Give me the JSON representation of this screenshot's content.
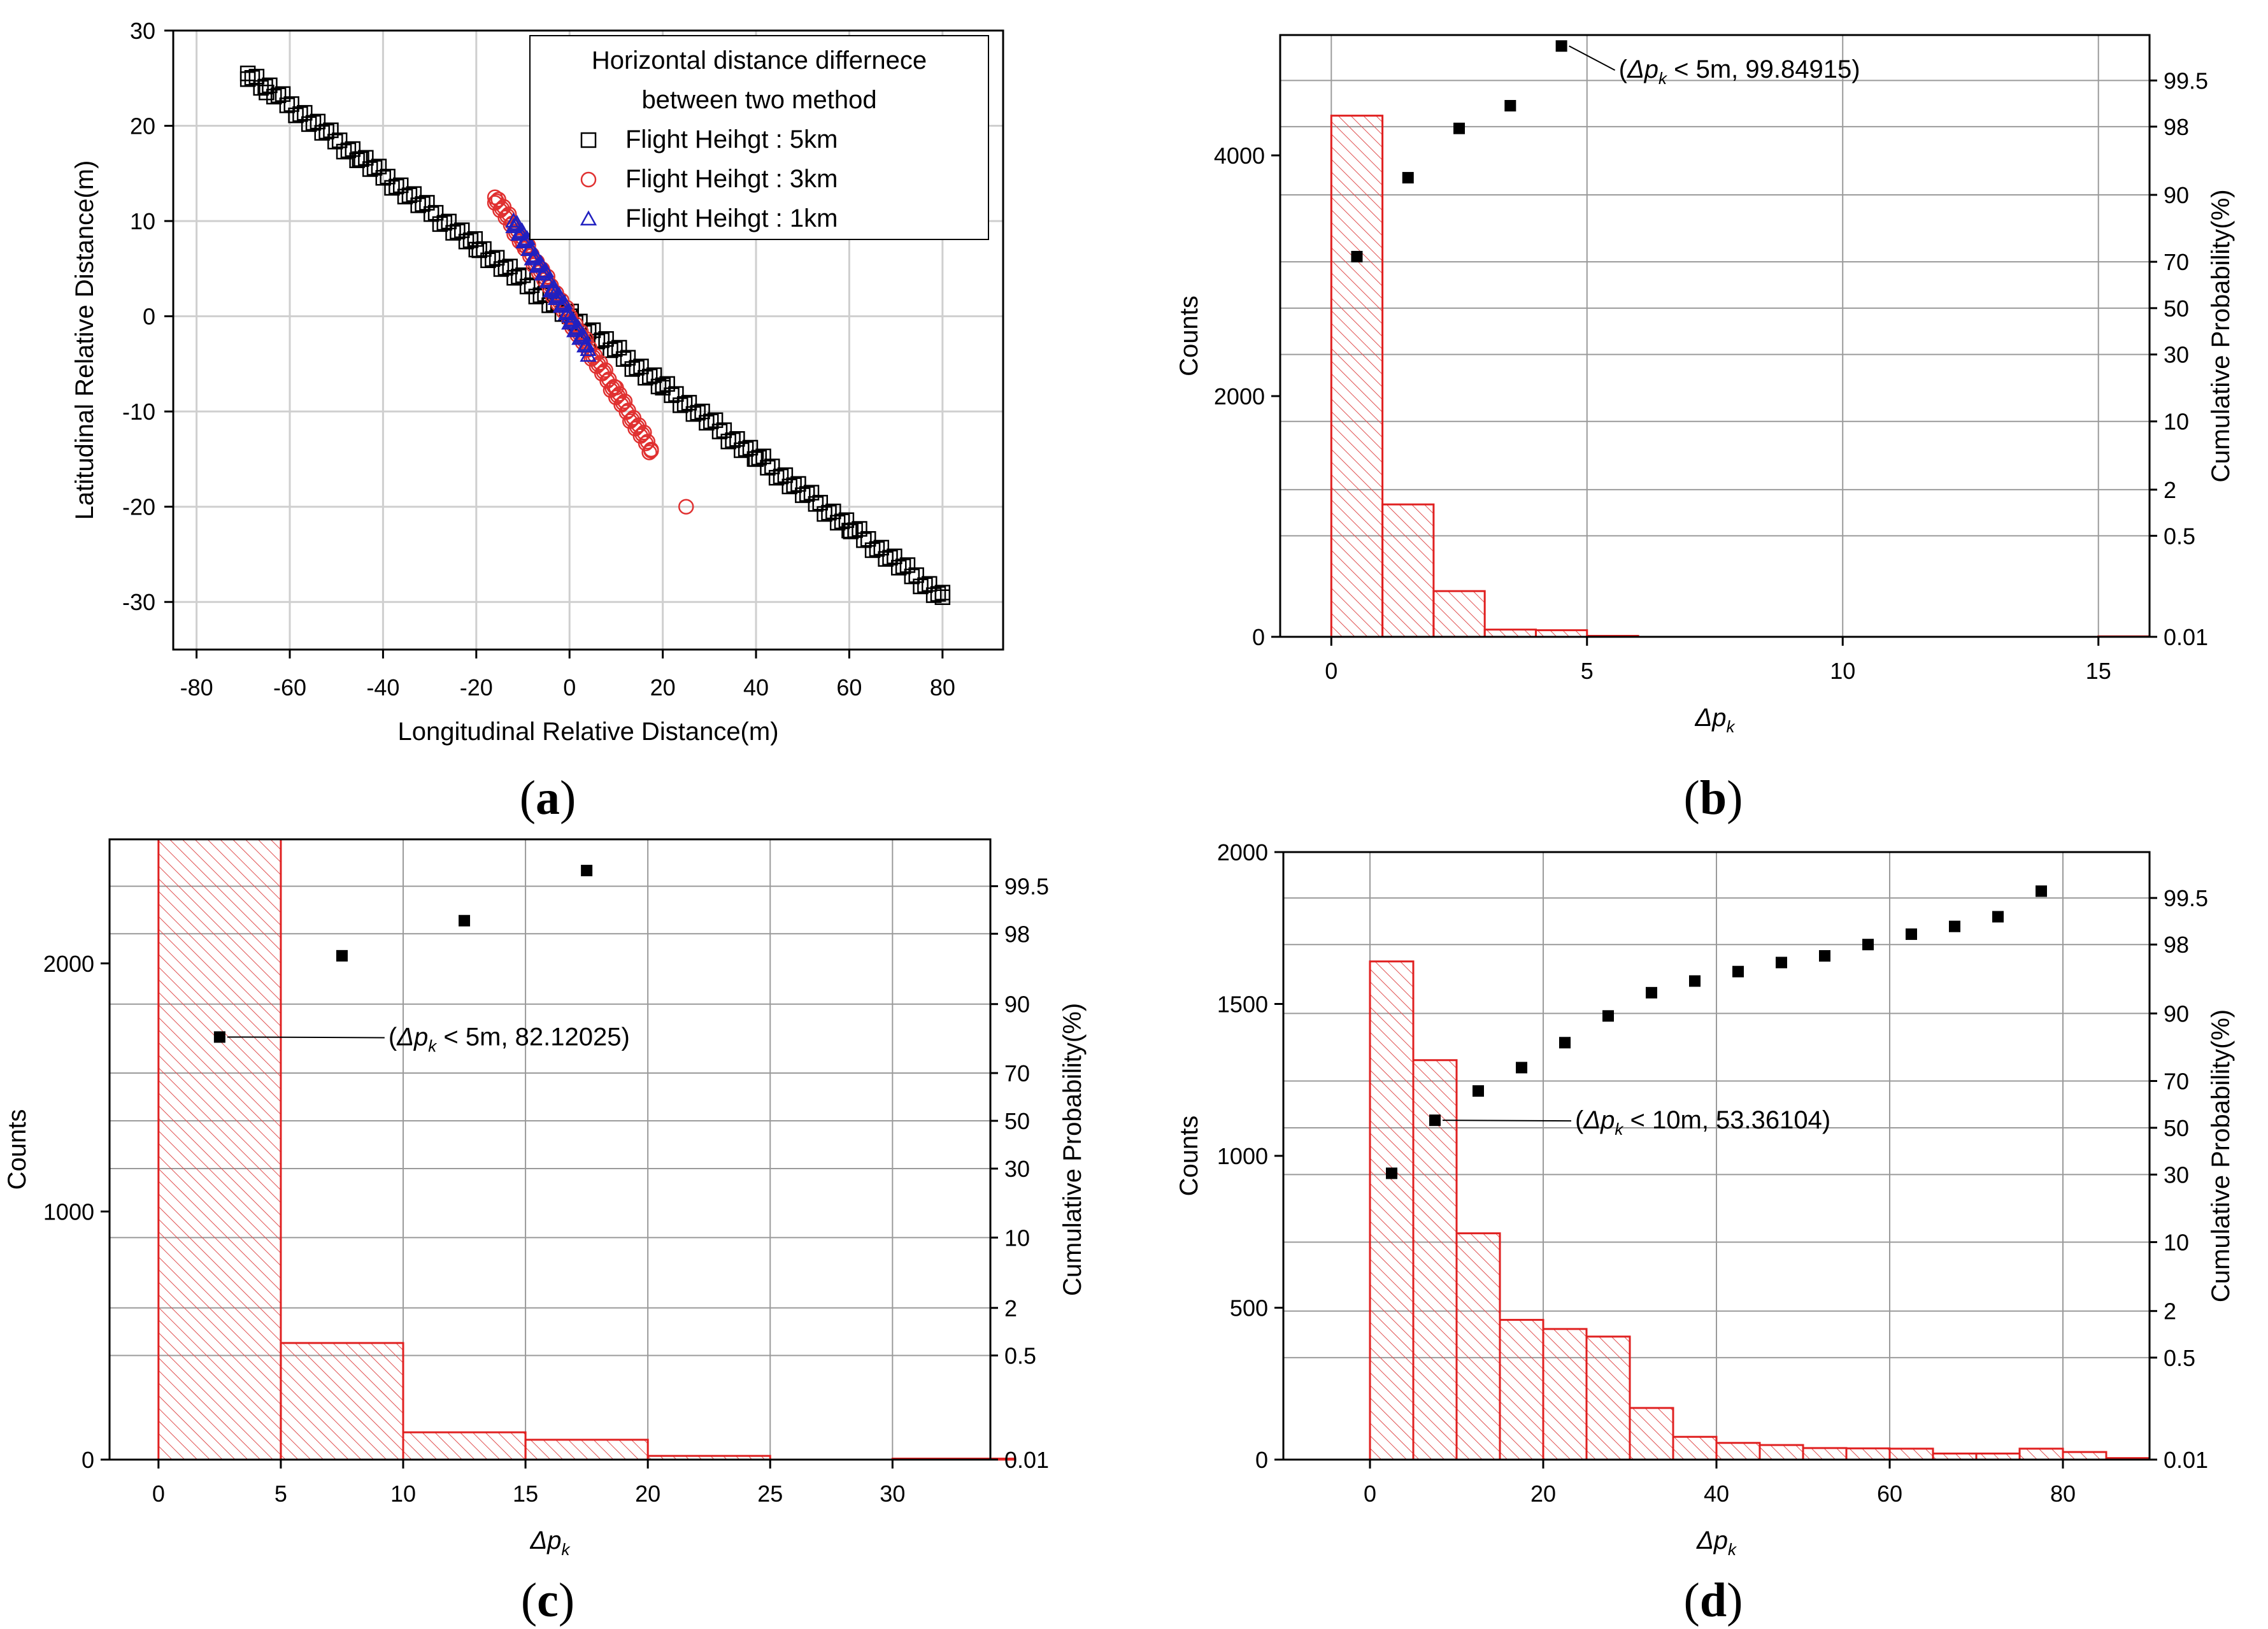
{
  "figure": {
    "panel_labels": [
      {
        "open": "(",
        "letter": "a",
        "close": ")"
      },
      {
        "open": "(",
        "letter": "b",
        "close": ")"
      },
      {
        "open": "(",
        "letter": "c",
        "close": ")"
      },
      {
        "open": "(",
        "letter": "d",
        "close": ")"
      }
    ]
  },
  "chart_data": [
    {
      "id": "a",
      "type": "scatter",
      "xlabel": "Longitudinal Relative Distance(m)",
      "ylabel": "Latitudinal Relative Distance(m)",
      "xlim": [
        -85,
        93
      ],
      "ylim": [
        -35,
        30
      ],
      "xticks": [
        -80,
        -60,
        -40,
        -20,
        0,
        20,
        40,
        60,
        80
      ],
      "yticks": [
        -30,
        -20,
        -10,
        0,
        10,
        20,
        30
      ],
      "grid": true,
      "legend": {
        "title_lines": [
          "Horizontal distance differnece",
          "between two method"
        ],
        "position": "top-right"
      },
      "series": [
        {
          "name": "Flight Heihgt : 5km",
          "marker": "square",
          "color": "#000000",
          "line": {
            "from": [
              -69,
              25.5
            ],
            "to": [
              80,
              -29.5
            ]
          },
          "count": 160,
          "points": [
            [
              -69,
              25.5
            ],
            [
              -65,
              23.5
            ],
            [
              -45,
              16.5
            ],
            [
              -20,
              7
            ],
            [
              0,
              0
            ],
            [
              20,
              -7.5
            ],
            [
              40,
              -15
            ],
            [
              60,
              -22.5
            ],
            [
              80,
              -29.5
            ]
          ]
        },
        {
          "name": "Flight Heihgt : 3km",
          "marker": "circle",
          "color": "#e03030",
          "line": {
            "from": [
              -16,
              12.5
            ],
            "to": [
              17.5,
              -14
            ]
          },
          "count": 90,
          "points": [
            [
              -16,
              12.5
            ],
            [
              -10,
              7.5
            ],
            [
              0,
              0
            ],
            [
              10,
              -7.5
            ],
            [
              17.5,
              -14
            ],
            [
              25,
              -20
            ]
          ]
        },
        {
          "name": "Flight Heihgt : 1km",
          "marker": "triangle",
          "color": "#2020c0",
          "line": {
            "from": [
              -12,
              10
            ],
            "to": [
              4,
              -3.5
            ]
          },
          "count": 45,
          "points": [
            [
              -12,
              10
            ],
            [
              -3,
              2.5
            ],
            [
              0,
              0
            ],
            [
              4,
              -3.5
            ]
          ]
        }
      ]
    },
    {
      "id": "b",
      "type": "bar",
      "xlabel": "Δp_k",
      "ylabel": "Counts",
      "y2label": "Cumulative Probability(%)",
      "xlim": [
        -1,
        16
      ],
      "ylim": [
        0,
        5000
      ],
      "xticks": [
        0,
        5,
        10,
        15
      ],
      "yticks": [
        0,
        2000,
        4000
      ],
      "prob_ticks": [
        "99.5",
        "98",
        "90",
        "70",
        "50",
        "30",
        "10",
        "2",
        "0.5",
        "0.01"
      ],
      "prob_tick_values": [
        99.5,
        98,
        90,
        70,
        50,
        30,
        10,
        2,
        0.5,
        0.01
      ],
      "bin_width": 1,
      "bins": [
        {
          "x0": 0,
          "count": 4330
        },
        {
          "x0": 1,
          "count": 1100
        },
        {
          "x0": 2,
          "count": 380
        },
        {
          "x0": 3,
          "count": 60
        },
        {
          "x0": 4,
          "count": 55
        },
        {
          "x0": 5,
          "count": 8
        },
        {
          "x0": 15,
          "count": 4
        }
      ],
      "cumulative": [
        {
          "x": 0.5,
          "p": 72
        },
        {
          "x": 1.5,
          "p": 93
        },
        {
          "x": 2.5,
          "p": 97.9
        },
        {
          "x": 3.5,
          "p": 98.9
        },
        {
          "x": 4.5,
          "p": 99.84915
        }
      ],
      "annotation": {
        "prefix": "(",
        "symbol": "Δp",
        "sub": "k",
        "text": " < 5m, 99.84915)",
        "x": 4.5,
        "p": 99.84915
      }
    },
    {
      "id": "c",
      "type": "bar",
      "xlabel": "Δp_k",
      "ylabel": "Counts",
      "y2label": "Cumulative Probability(%)",
      "xlim": [
        -2,
        34
      ],
      "ylim": [
        0,
        2500
      ],
      "xticks": [
        0,
        5,
        10,
        15,
        20,
        25,
        30
      ],
      "yticks": [
        0,
        1000,
        2000
      ],
      "prob_ticks": [
        "99.5",
        "98",
        "90",
        "70",
        "50",
        "30",
        "10",
        "2",
        "0.5",
        "0.01"
      ],
      "prob_tick_values": [
        99.5,
        98,
        90,
        70,
        50,
        30,
        10,
        2,
        0.5,
        0.01
      ],
      "bin_width": 5,
      "bins": [
        {
          "x0": 0,
          "count": 2500
        },
        {
          "x0": 5,
          "count": 470
        },
        {
          "x0": 10,
          "count": 110
        },
        {
          "x0": 15,
          "count": 80
        },
        {
          "x0": 20,
          "count": 15
        },
        {
          "x0": 30,
          "count": 4
        }
      ],
      "cumulative": [
        {
          "x": 2.5,
          "p": 82.12025
        },
        {
          "x": 7.5,
          "p": 96.5
        },
        {
          "x": 12.5,
          "p": 98.6
        },
        {
          "x": 17.5,
          "p": 99.7
        }
      ],
      "annotation": {
        "prefix": "(",
        "symbol": "Δp",
        "sub": "k",
        "text": " < 5m, 82.12025)",
        "x": 2.5,
        "p": 82.12025
      }
    },
    {
      "id": "d",
      "type": "bar",
      "xlabel": "Δp_k",
      "ylabel": "Counts",
      "y2label": "Cumulative Probability(%)",
      "xlim": [
        -10,
        90
      ],
      "ylim": [
        0,
        2000
      ],
      "xticks": [
        0,
        20,
        40,
        60,
        80
      ],
      "yticks": [
        0,
        500,
        1000,
        1500,
        2000
      ],
      "prob_ticks": [
        "99.5",
        "98",
        "90",
        "70",
        "50",
        "30",
        "10",
        "2",
        "0.5",
        "0.01"
      ],
      "prob_tick_values": [
        99.5,
        98,
        90,
        70,
        50,
        30,
        10,
        2,
        0.5,
        0.01
      ],
      "bin_width": 5,
      "bins": [
        {
          "x0": 0,
          "count": 1640
        },
        {
          "x0": 5,
          "count": 1315
        },
        {
          "x0": 10,
          "count": 745
        },
        {
          "x0": 15,
          "count": 460
        },
        {
          "x0": 20,
          "count": 430
        },
        {
          "x0": 25,
          "count": 405
        },
        {
          "x0": 30,
          "count": 170
        },
        {
          "x0": 35,
          "count": 75
        },
        {
          "x0": 40,
          "count": 55
        },
        {
          "x0": 45,
          "count": 48
        },
        {
          "x0": 50,
          "count": 38
        },
        {
          "x0": 55,
          "count": 37
        },
        {
          "x0": 60,
          "count": 36
        },
        {
          "x0": 65,
          "count": 20
        },
        {
          "x0": 70,
          "count": 20
        },
        {
          "x0": 75,
          "count": 36
        },
        {
          "x0": 80,
          "count": 25
        },
        {
          "x0": 85,
          "count": 5
        }
      ],
      "cumulative": [
        {
          "x": 2.5,
          "p": 30.5
        },
        {
          "x": 7.5,
          "p": 53.36104
        },
        {
          "x": 12.5,
          "p": 66
        },
        {
          "x": 17.5,
          "p": 75
        },
        {
          "x": 22.5,
          "p": 83
        },
        {
          "x": 27.5,
          "p": 89.5
        },
        {
          "x": 32.5,
          "p": 93.5
        },
        {
          "x": 37.5,
          "p": 95
        },
        {
          "x": 42.5,
          "p": 96
        },
        {
          "x": 47.5,
          "p": 96.8
        },
        {
          "x": 52.5,
          "p": 97.3
        },
        {
          "x": 57.5,
          "p": 98
        },
        {
          "x": 62.5,
          "p": 98.5
        },
        {
          "x": 67.5,
          "p": 98.8
        },
        {
          "x": 72.5,
          "p": 99.1
        },
        {
          "x": 77.5,
          "p": 99.6
        }
      ],
      "annotation": {
        "prefix": "(",
        "symbol": "Δp",
        "sub": "k",
        "text": " < 10m, 53.36104)",
        "x": 7.5,
        "p": 53.36104
      }
    }
  ]
}
